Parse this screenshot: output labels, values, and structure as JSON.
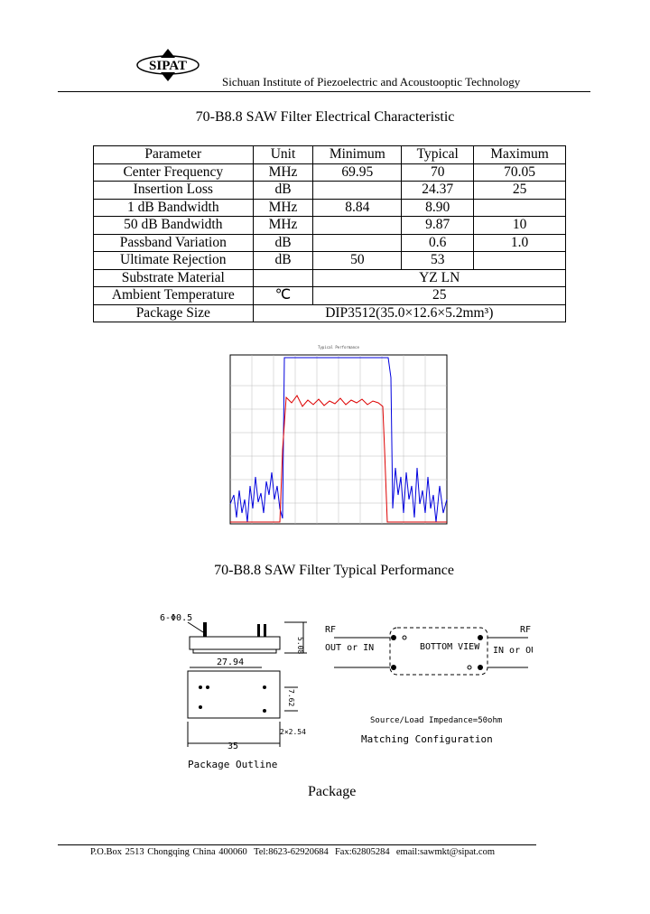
{
  "header": {
    "logo": "SIPAT",
    "institute": "Sichuan Institute of Piezoelectric and Acoustooptic Technology"
  },
  "title": "70-B8.8 SAW Filter Electrical Characteristic",
  "table": {
    "columns": [
      "Parameter",
      "Unit",
      "Minimum",
      "Typical",
      "Maximum"
    ],
    "rows": [
      [
        "Center Frequency",
        "MHz",
        "69.95",
        "70",
        "70.05"
      ],
      [
        "Insertion Loss",
        "dB",
        null,
        "24.37",
        "25"
      ],
      [
        "1 dB Bandwidth",
        "MHz",
        "8.84",
        "8.90",
        null
      ],
      [
        "50 dB Bandwidth",
        "MHz",
        null,
        "9.87",
        "10"
      ],
      [
        "Passband Variation",
        "dB",
        null,
        "0.6",
        "1.0"
      ],
      [
        "Ultimate Rejection",
        "dB",
        "50",
        "53",
        null
      ],
      [
        "Substrate Material",
        null,
        "YZ LN"
      ],
      [
        "Ambient Temperature",
        "℃",
        "25"
      ],
      [
        "Package Size",
        "DIP3512(35.0×12.6×5.2mm³)"
      ]
    ]
  },
  "performance_title": "70-B8.8 SAW Filter Typical Performance",
  "package": {
    "pins": "6-Φ0.5",
    "width_pitch": "27.94",
    "length": "35",
    "height": "5.08",
    "row_pitch": "7.62",
    "pin_pitch": "2×2.54",
    "outline_caption": "Package Outline",
    "rf_left": "RF",
    "port_left": "OUT or IN",
    "bottom_view": "BOTTOM VIEW",
    "rf_right": "RF",
    "port_right": "IN or OUT",
    "impedance": "Source/Load Impedance=50ohm",
    "matching_caption": "Matching Configuration"
  },
  "package_title": "Package",
  "footer": {
    "address": "P.O.Box 2513 Chongqing China 400060",
    "tel": "Tel:8623-62920684",
    "fax": "Fax:62805284",
    "email": "email:sawmkt@sipat.com"
  }
}
